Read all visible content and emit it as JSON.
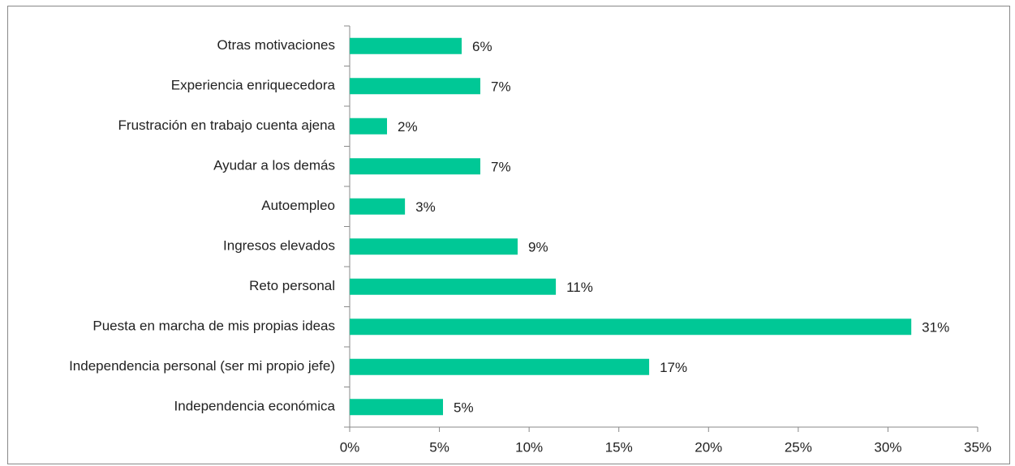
{
  "chart_data": {
    "type": "bar",
    "orientation": "horizontal",
    "categories": [
      "Otras motivaciones",
      "Experiencia enriquecedora",
      "Frustración en trabajo cuenta ajena",
      "Ayudar a los demás",
      "Autoempleo",
      "Ingresos elevados",
      "Reto personal",
      "Puesta en marcha de mis propias ideas",
      "Independencia personal (ser mi propio jefe)",
      "Independencia económica"
    ],
    "values": [
      6.24,
      7.28,
      2.08,
      7.28,
      3.08,
      9.36,
      11.49,
      31.3,
      16.69,
      5.2
    ],
    "value_labels": [
      "6%",
      "7%",
      "2%",
      "7%",
      "3%",
      "9%",
      "11%",
      "31%",
      "17%",
      "5%"
    ],
    "color": "#00c896",
    "xlim": [
      0,
      35
    ],
    "xticks": [
      {
        "value": 0,
        "label": "0%"
      },
      {
        "value": 5,
        "label": "5%"
      },
      {
        "value": 10,
        "label": "10%"
      },
      {
        "value": 15,
        "label": "15%"
      },
      {
        "value": 20,
        "label": "20%"
      },
      {
        "value": 25,
        "label": "25%"
      },
      {
        "value": 30,
        "label": "30%"
      },
      {
        "value": 35,
        "label": "35%"
      }
    ],
    "grid": false
  }
}
